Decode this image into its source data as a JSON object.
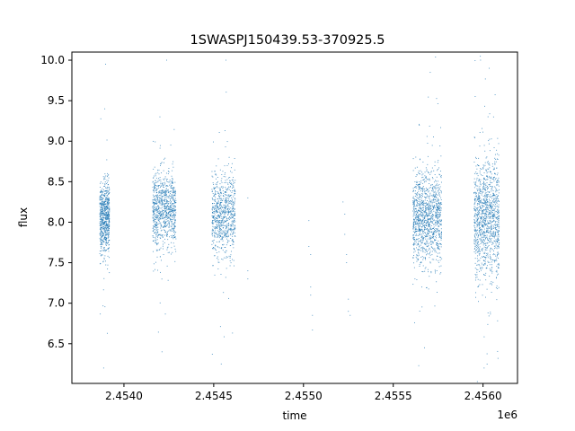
{
  "chart_data": {
    "type": "scatter",
    "title": "1SWASPJ150439.53-370925.5",
    "xlabel": "time",
    "ylabel": "flux",
    "x_offset_label": "1e6",
    "xlim": [
      2.45371,
      2.456192
    ],
    "ylim": [
      6.01,
      10.1
    ],
    "x_ticks": [
      2.454,
      2.4545,
      2.455,
      2.4555,
      2.456
    ],
    "x_tick_labels": [
      "2.4540",
      "2.4545",
      "2.4550",
      "2.4555",
      "2.4560"
    ],
    "y_ticks": [
      6.5,
      7.0,
      7.5,
      8.0,
      8.5,
      9.0,
      9.5,
      10.0
    ],
    "y_tick_labels": [
      "6.5",
      "7.0",
      "7.5",
      "8.0",
      "8.5",
      "9.0",
      "9.5",
      "10.0"
    ],
    "grid": false,
    "marker_color": "#1f77b4",
    "series": [
      {
        "clusters": [
          {
            "x": [
              2.453865,
              2.45392
            ],
            "center": 8.05,
            "spread": 0.22,
            "n": 700,
            "outlier_low": 6.2,
            "outlier_high": 9.95
          },
          {
            "x": [
              2.45416,
              2.45429
            ],
            "center": 8.15,
            "spread": 0.22,
            "n": 900,
            "outlier_low": 6.4,
            "outlier_high": 10.0
          },
          {
            "x": [
              2.45449,
              2.45462
            ],
            "center": 8.1,
            "spread": 0.25,
            "n": 800,
            "outlier_low": 6.25,
            "outlier_high": 10.0
          },
          {
            "x": [
              2.45561,
              2.45577
            ],
            "center": 8.05,
            "spread": 0.28,
            "n": 1200,
            "outlier_low": 6.45,
            "outlier_high": 9.85
          },
          {
            "x": [
              2.45595,
              2.45609
            ],
            "center": 8.05,
            "spread": 0.35,
            "n": 1200,
            "outlier_low": 6.2,
            "outlier_high": 9.9
          }
        ],
        "sparse_points": [
          [
            2.45469,
            8.3
          ],
          [
            2.45469,
            7.4
          ],
          [
            2.45469,
            7.3
          ],
          [
            2.45503,
            8.02
          ],
          [
            2.45503,
            7.7
          ],
          [
            2.45504,
            7.6
          ],
          [
            2.45504,
            7.2
          ],
          [
            2.45505,
            6.85
          ],
          [
            2.45505,
            6.67
          ],
          [
            2.45504,
            7.1
          ],
          [
            2.45522,
            8.25
          ],
          [
            2.45523,
            8.1
          ],
          [
            2.45523,
            7.85
          ],
          [
            2.45524,
            7.6
          ],
          [
            2.45524,
            7.5
          ],
          [
            2.45525,
            7.05
          ],
          [
            2.45525,
            6.9
          ],
          [
            2.45526,
            6.85
          ]
        ]
      }
    ]
  }
}
